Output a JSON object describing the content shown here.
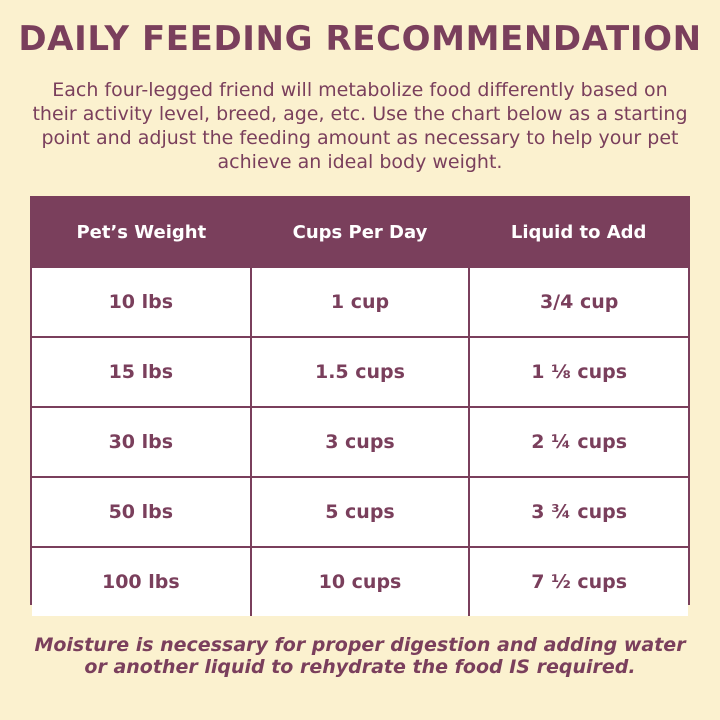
{
  "title": "DAILY FEEDING RECOMMENDATION",
  "intro": "Each four-legged friend will metabolize food differently based on their activity level, breed, age, etc. Use the chart below as a starting point and adjust the feeding amount as necessary to help your pet achieve an ideal body weight.",
  "table": {
    "headers": [
      "Pet’s Weight",
      "Cups Per Day",
      "Liquid to Add"
    ],
    "rows": [
      [
        "10 lbs",
        "1 cup",
        "3/4 cup"
      ],
      [
        "15 lbs",
        "1.5 cups",
        "1 ⅛ cups"
      ],
      [
        "30 lbs",
        "3 cups",
        "2 ¼ cups"
      ],
      [
        "50 lbs",
        "5 cups",
        "3 ¾ cups"
      ],
      [
        "100 lbs",
        "10 cups",
        "7 ½ cups"
      ]
    ]
  },
  "note": "Moisture is necessary for proper digestion and adding water or another liquid to rehydrate the food IS required.",
  "colors": {
    "background": "#fbf1cf",
    "accent": "#7a3f5c",
    "cell_background": "#ffffff",
    "header_text": "#ffffff"
  }
}
